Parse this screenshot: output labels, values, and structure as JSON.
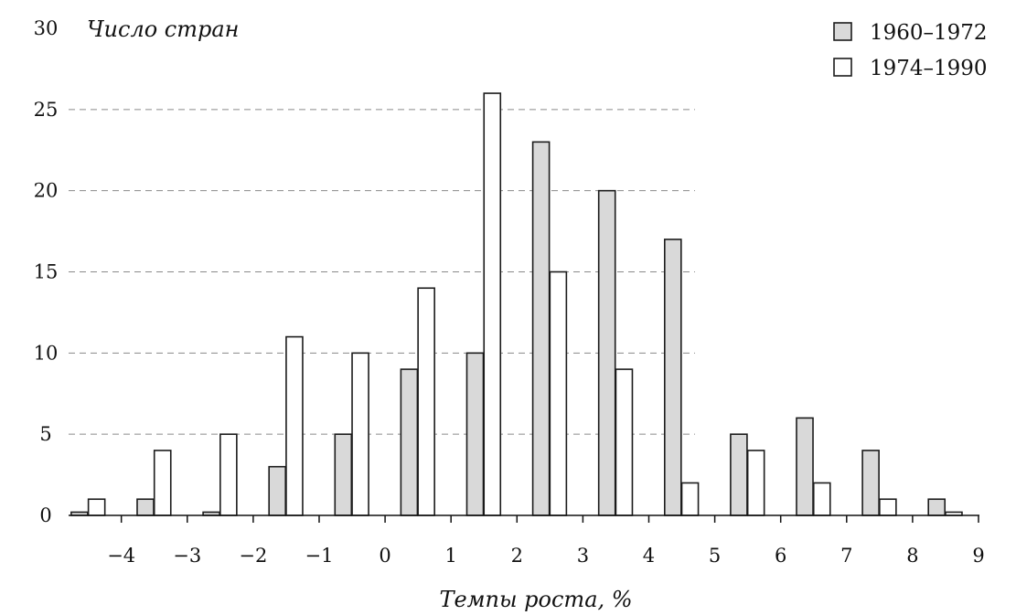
{
  "chart_data": {
    "type": "bar",
    "ylabel": "Число стран",
    "xlabel": "Темпы роста, %",
    "ylim": [
      0,
      30
    ],
    "y_ticks": [
      "0",
      "5",
      "10",
      "15",
      "20",
      "25",
      "30"
    ],
    "x_tick_labels": [
      "−4",
      "−3",
      "−2",
      "−1",
      "0",
      "1",
      "2",
      "3",
      "4",
      "5",
      "6",
      "7",
      "8",
      "9"
    ],
    "x_ticks_values": [
      -4,
      -3,
      -2,
      -1,
      0,
      1,
      2,
      3,
      4,
      5,
      6,
      7,
      8,
      9
    ],
    "categories": [
      "-4.5",
      "-3.5",
      "-2.5",
      "-1.5",
      "-0.5",
      "0.5",
      "1.5",
      "2.5",
      "3.5",
      "4.5",
      "5.5",
      "6.5",
      "7.5",
      "8.5"
    ],
    "grid": "dashed horizontal",
    "legend_position": "top-right",
    "series": [
      {
        "name": "1960–1972",
        "color": "#d9d9d9",
        "values": [
          0.2,
          1,
          0.2,
          3,
          5,
          9,
          10,
          23,
          20,
          17,
          5,
          6,
          4,
          1
        ]
      },
      {
        "name": "1974–1990",
        "color": "#ffffff",
        "values": [
          1,
          4,
          5,
          11,
          10,
          14,
          26,
          15,
          9,
          2,
          4,
          2,
          1,
          0.2
        ]
      }
    ]
  }
}
